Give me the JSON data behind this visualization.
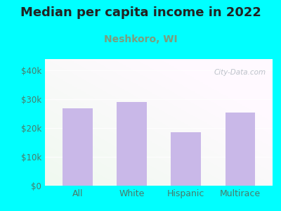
{
  "title": "Median per capita income in 2022",
  "subtitle": "Neshkoro, WI",
  "categories": [
    "All",
    "White",
    "Hispanic",
    "Multirace"
  ],
  "values": [
    27000,
    29000,
    18500,
    25500
  ],
  "bar_color": "#c9b8e8",
  "title_fontsize": 13,
  "subtitle_fontsize": 10,
  "subtitle_color": "#7a9e7e",
  "title_color": "#222222",
  "tick_label_color": "#4a7a6a",
  "background_outer": "#00ffff",
  "yticks": [
    0,
    10000,
    20000,
    30000,
    40000
  ],
  "ytick_labels": [
    "$0",
    "$10k",
    "$20k",
    "$30k",
    "$40k"
  ],
  "ylim": [
    0,
    44000
  ],
  "watermark": "City-Data.com"
}
